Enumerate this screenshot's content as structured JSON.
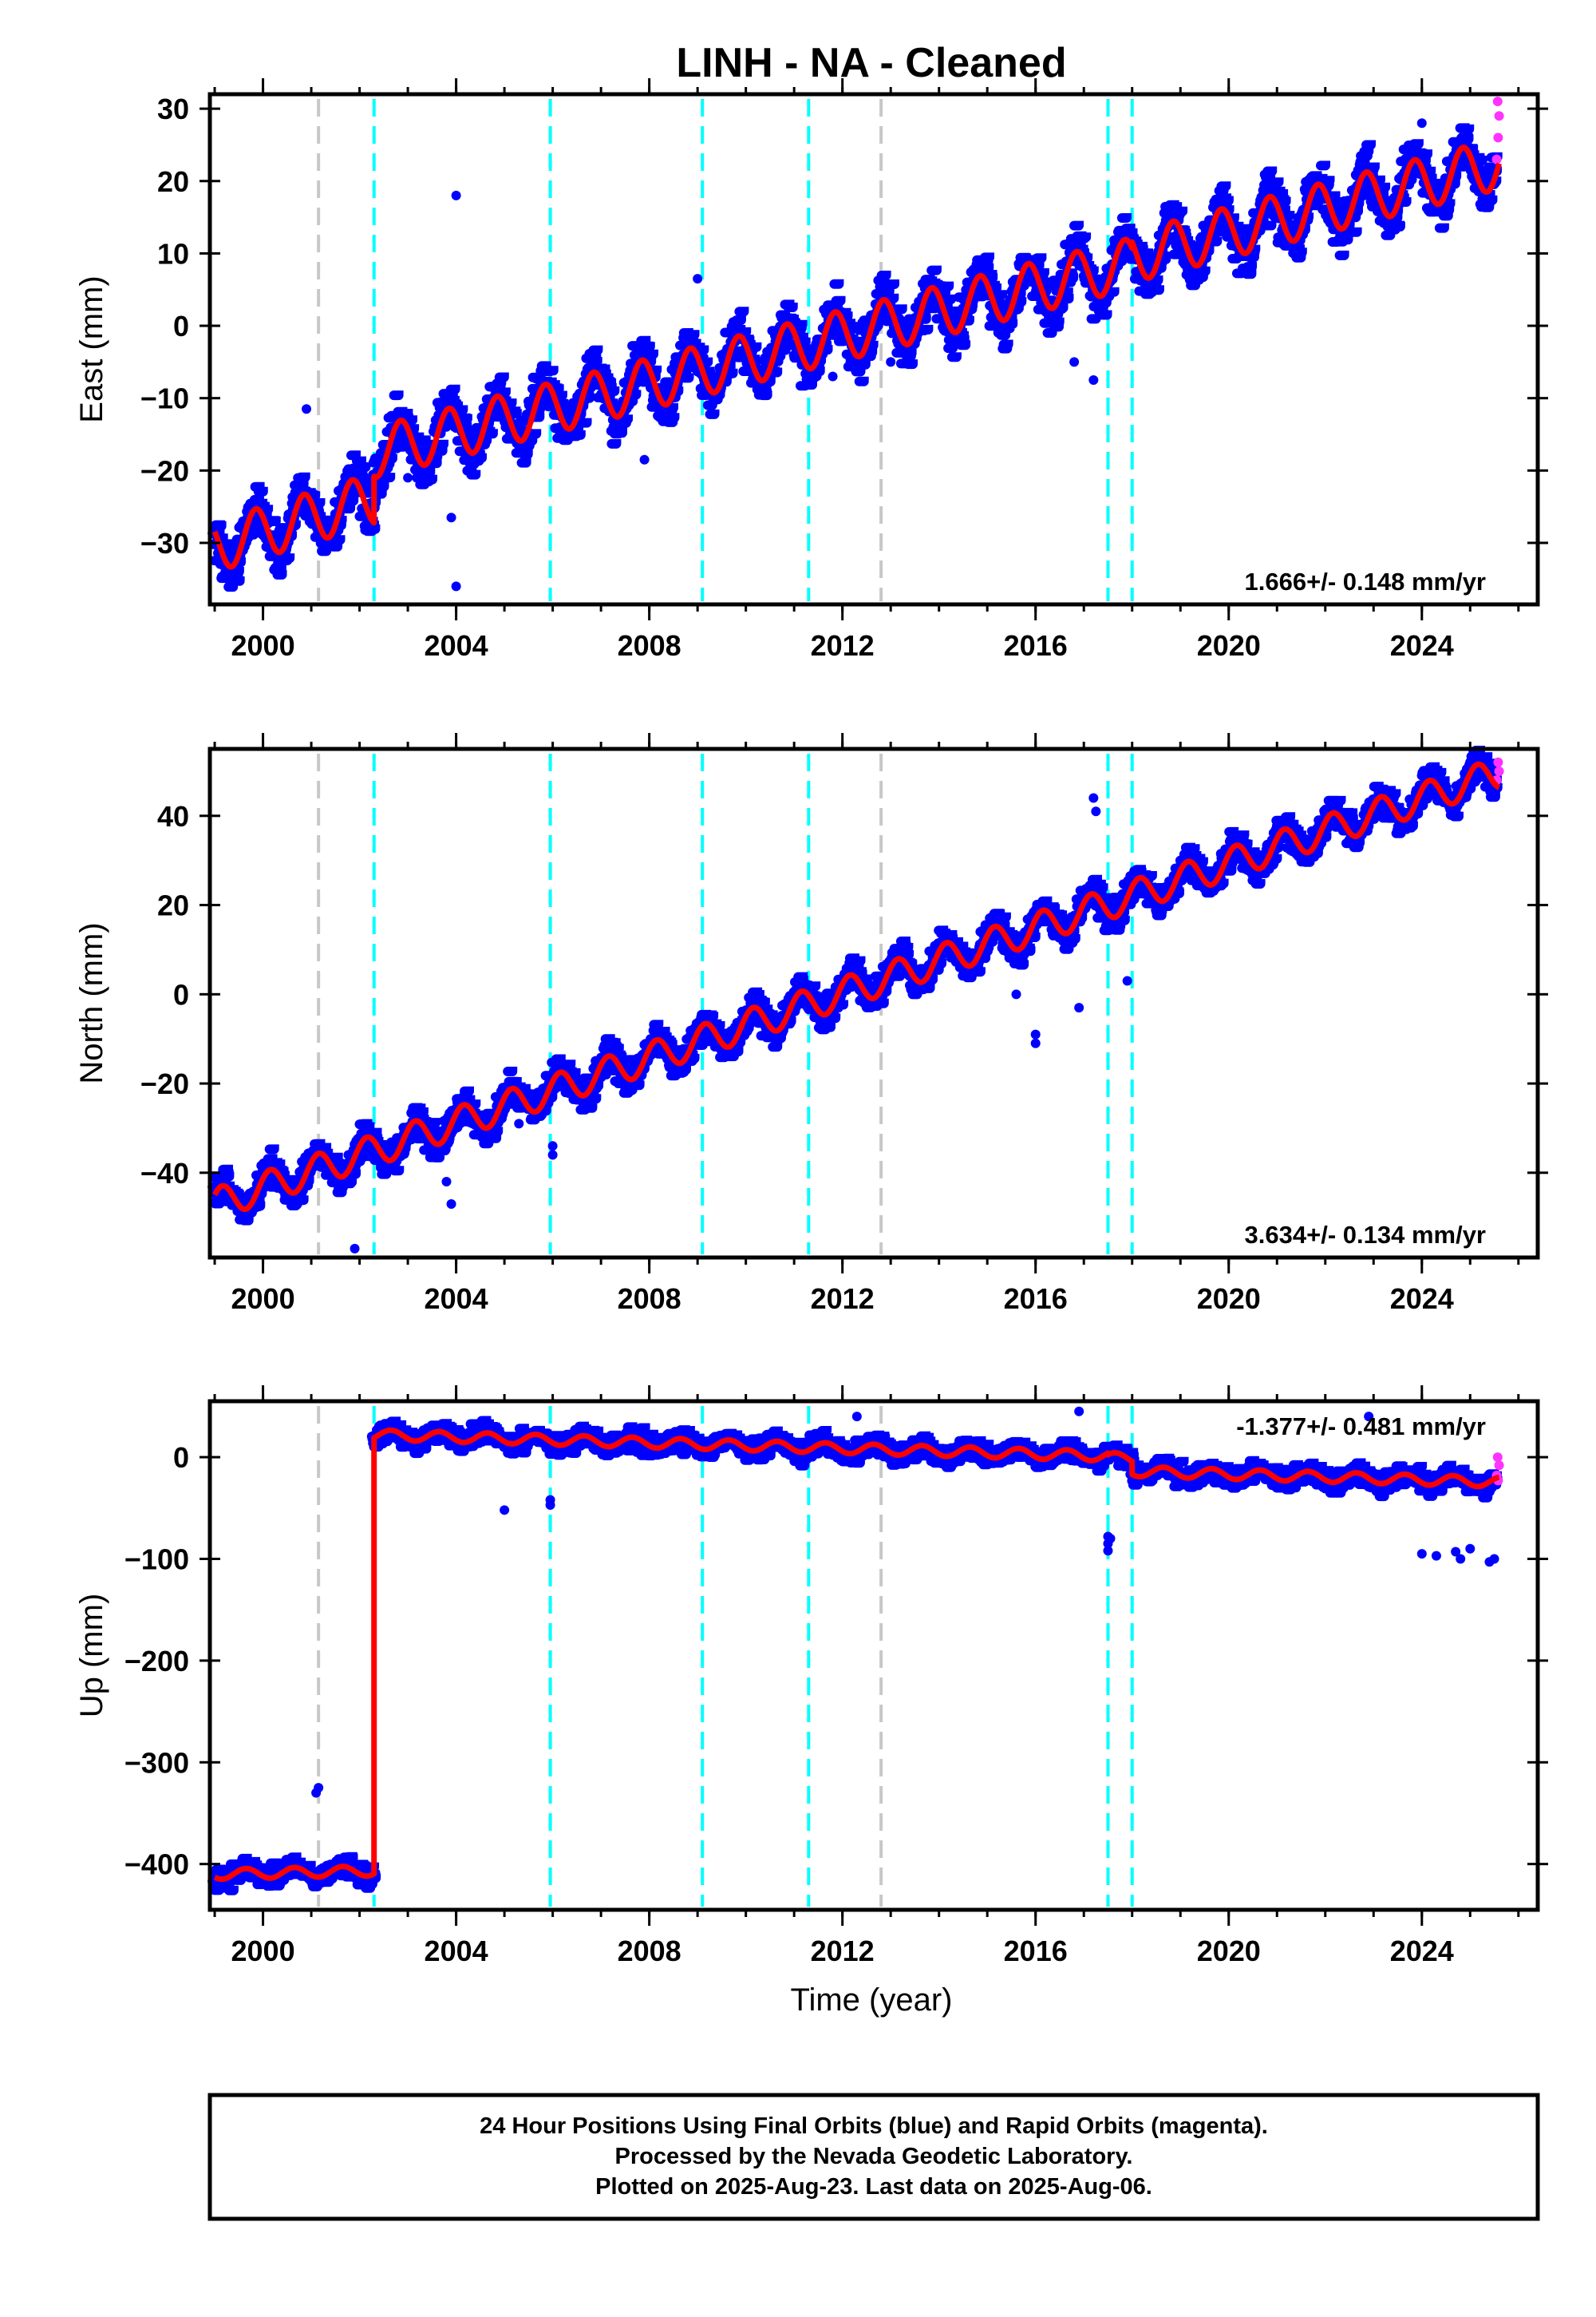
{
  "chart_data": {
    "title": "LINH  - NA - Cleaned",
    "xlabel": "Time (year)",
    "x_ticks": [
      2000,
      2004,
      2008,
      2012,
      2016,
      2020,
      2024
    ],
    "xlim": [
      1998.9,
      2026.4
    ],
    "colors": {
      "final_orbits": "#0000ff",
      "rapid_orbits": "#ff33ff",
      "model": "#ff0000",
      "equipment_change": "#00ffff",
      "earthquake": "#c8c8c8"
    },
    "event_lines": {
      "cyan": [
        2002.3,
        2005.95,
        2009.1,
        2011.3,
        2017.5,
        2018.0
      ],
      "gray": [
        2001.15,
        2012.8
      ]
    },
    "panels": [
      {
        "type": "scatter",
        "ylabel": "East (mm)",
        "ylim": [
          -38.5,
          32
        ],
        "y_ticks": [
          -30,
          -20,
          -10,
          0,
          10,
          20,
          30
        ],
        "rate": "1.666+/- 0.148 mm/yr",
        "rate_position": "bottom-right",
        "model_segments": [
          {
            "from": 1999.0,
            "to": 2002.3,
            "y0": -30.5,
            "slope": 2.0,
            "amplitude": 3.5,
            "phase": 0.4
          },
          {
            "from": 2002.3,
            "to": 2018.0,
            "y0": -17.5,
            "slope": 1.666,
            "amplitude": 3.5,
            "phase": 0.4
          },
          {
            "from": 2018.0,
            "to": 2025.6,
            "y0": 9.5,
            "slope": 1.7,
            "amplitude": 3.5,
            "phase": 0.4
          }
        ],
        "scatter_spread": 2.2,
        "outliers": [
          [
            2004.0,
            18
          ],
          [
            2003.9,
            -26.5
          ],
          [
            2004.0,
            -36
          ],
          [
            2000.9,
            -11.5
          ],
          [
            2007.9,
            -18.5
          ],
          [
            2009.0,
            6.5
          ],
          [
            2011.8,
            -7
          ],
          [
            2017.2,
            -7.5
          ],
          [
            2013.0,
            -5
          ],
          [
            2003.0,
            -21
          ],
          [
            2024.0,
            28
          ],
          [
            2016.8,
            -5
          ]
        ],
        "rapid_points": [
          [
            2025.57,
            31
          ],
          [
            2025.6,
            29
          ],
          [
            2025.55,
            23
          ],
          [
            2025.58,
            26
          ]
        ]
      },
      {
        "type": "scatter",
        "ylabel": "North (mm)",
        "ylim": [
          -59,
          55
        ],
        "y_ticks": [
          -40,
          -20,
          0,
          20,
          40
        ],
        "rate": "3.634+/- 0.134 mm/yr",
        "rate_position": "bottom-right",
        "model_segments": [
          {
            "from": 1999.0,
            "to": 2025.6,
            "y0": -47.0,
            "slope": 3.634,
            "amplitude": 3.5,
            "phase": 0.1
          }
        ],
        "scatter_spread": 2.3,
        "outliers": [
          [
            2017.2,
            44
          ],
          [
            2017.25,
            41
          ],
          [
            2016.0,
            -9
          ],
          [
            2016.0,
            -11
          ],
          [
            2003.9,
            -47
          ],
          [
            2003.8,
            -42
          ],
          [
            2006.0,
            -34
          ],
          [
            2006.0,
            -36
          ],
          [
            2001.9,
            -57
          ],
          [
            2005.3,
            -29
          ],
          [
            2016.9,
            -3
          ],
          [
            2017.9,
            3
          ],
          [
            2015.6,
            0
          ]
        ],
        "rapid_points": [
          [
            2025.58,
            52
          ],
          [
            2025.6,
            50
          ],
          [
            2025.55,
            48
          ]
        ]
      },
      {
        "type": "scatter",
        "ylabel": "Up (mm)",
        "ylim": [
          -445,
          55
        ],
        "y_ticks": [
          -400,
          -300,
          -200,
          -100,
          0
        ],
        "rate": "-1.377+/- 0.481 mm/yr",
        "rate_position": "top-right",
        "model_segments": [
          {
            "from": 1999.0,
            "to": 2002.3,
            "y0": -410.0,
            "slope": 1.0,
            "amplitude": 5.0,
            "phase": 0.6
          },
          {
            "from": 2002.3,
            "to": 2017.5,
            "y0": 22.0,
            "slope": -1.377,
            "amplitude": 5.0,
            "phase": 0.6
          },
          {
            "from": 2017.5,
            "to": 2018.0,
            "y0": -0.5,
            "slope": -1.377,
            "amplitude": 5.0,
            "phase": 0.6
          },
          {
            "from": 2018.0,
            "to": 2025.6,
            "y0": -14.0,
            "slope": -1.377,
            "amplitude": 5.0,
            "phase": 0.6
          }
        ],
        "scatter_spread": 7.0,
        "outliers": [
          [
            2001.1,
            -330
          ],
          [
            2001.15,
            -325
          ],
          [
            2005.0,
            -52
          ],
          [
            2005.95,
            -42
          ],
          [
            2005.95,
            -47
          ],
          [
            2017.5,
            -78
          ],
          [
            2017.5,
            -85
          ],
          [
            2017.5,
            -92
          ],
          [
            2017.55,
            -80
          ],
          [
            2024.0,
            -95
          ],
          [
            2024.3,
            -97
          ],
          [
            2024.7,
            -93
          ],
          [
            2024.8,
            -100
          ],
          [
            2025.0,
            -90
          ],
          [
            2025.4,
            -103
          ],
          [
            2025.5,
            -100
          ],
          [
            2016.9,
            45
          ],
          [
            2012.3,
            40
          ],
          [
            2022.9,
            40
          ]
        ],
        "rapid_points": [
          [
            2025.57,
            0
          ],
          [
            2025.6,
            -8
          ],
          [
            2025.55,
            -18
          ],
          [
            2025.58,
            -23
          ]
        ]
      }
    ]
  },
  "footer": {
    "line1": "24 Hour Positions Using Final Orbits (blue) and Rapid Orbits (magenta).",
    "line2": "Processed by the Nevada Geodetic Laboratory.",
    "line3": "Plotted on 2025-Aug-23. Last data on 2025-Aug-06."
  }
}
